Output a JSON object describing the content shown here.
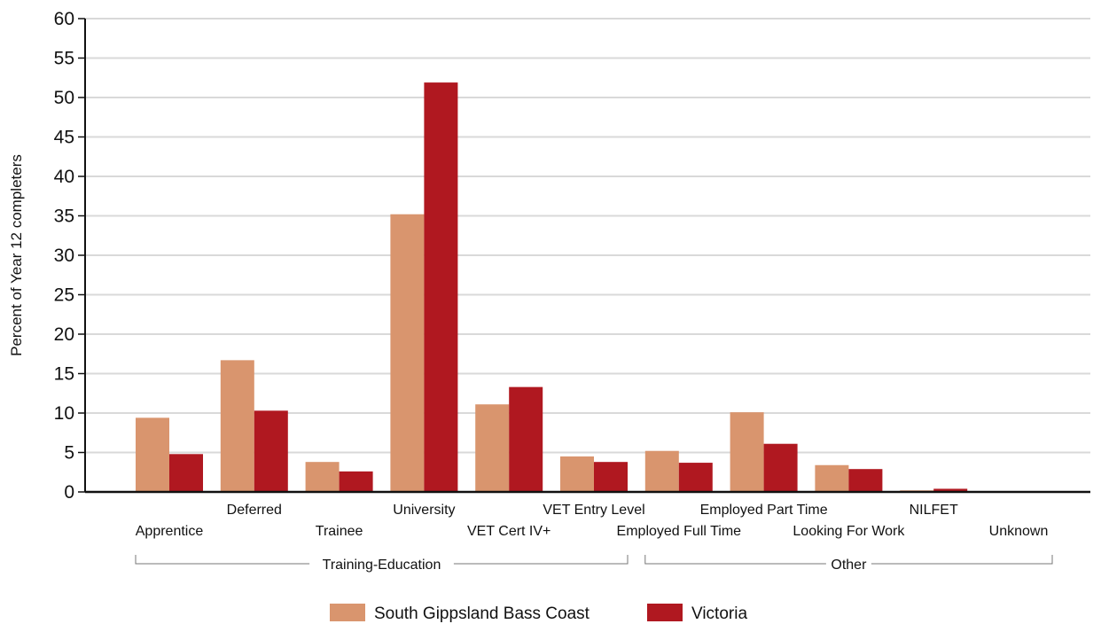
{
  "chart_data": {
    "type": "bar",
    "ylabel": "Percent of Year 12 completers",
    "ylim": [
      0,
      60
    ],
    "yticks": [
      0,
      5,
      10,
      15,
      20,
      25,
      30,
      35,
      40,
      45,
      50,
      55,
      60
    ],
    "grid": true,
    "legend_position": "bottom",
    "categories": [
      "Apprentice",
      "Deferred",
      "Trainee",
      "University",
      "VET Cert IV+",
      "VET Entry Level",
      "Employed Full Time",
      "Employed Part Time",
      "Looking For Work",
      "NILFET",
      "Unknown"
    ],
    "groups": [
      {
        "label": "Training-Education",
        "categories": [
          "Apprentice",
          "Deferred",
          "Trainee",
          "University",
          "VET Cert IV+",
          "VET Entry Level"
        ]
      },
      {
        "label": "Other",
        "categories": [
          "Employed Full Time",
          "Employed Part Time",
          "Looking For Work",
          "NILFET",
          "Unknown"
        ]
      }
    ],
    "series": [
      {
        "name": "South Gippsland Bass Coast",
        "color": "#d9956e",
        "values": [
          9.4,
          16.7,
          3.8,
          35.2,
          11.1,
          4.5,
          5.2,
          10.1,
          3.4,
          0.2,
          0
        ]
      },
      {
        "name": "Victoria",
        "color": "#b01820",
        "values": [
          4.8,
          10.3,
          2.6,
          51.9,
          13.3,
          3.8,
          3.7,
          6.1,
          2.9,
          0.4,
          0
        ]
      }
    ]
  }
}
